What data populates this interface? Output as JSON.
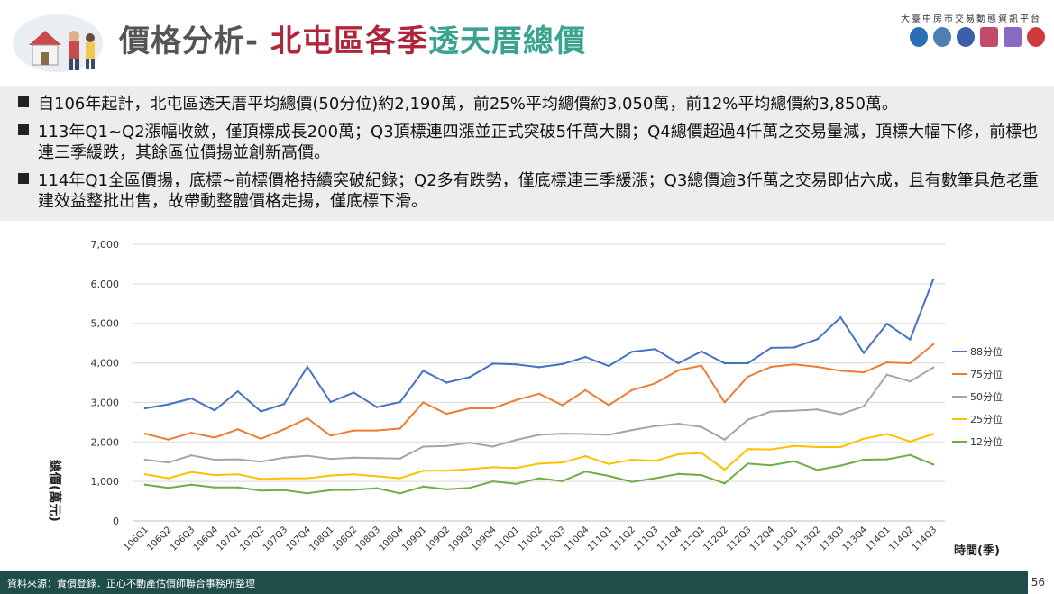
{
  "header": {
    "title_part1": "價格分析-",
    "title_part2": "北屯區各季",
    "title_part3": "透天厝總價",
    "platform": "大臺中房市交易動態資訊平台"
  },
  "bullets": [
    "自106年起計，北屯區透天厝平均總價(50分位)約2,190萬，前25%平均總價約3,050萬，前12%平均總價約3,850萬。",
    "113年Q1~Q2漲幅收斂，僅頂標成長200萬；Q3頂標連四漲並正式突破5仟萬大關；Q4總價超過4仟萬之交易量減，頂標大幅下修，前標也連三季緩跌，其餘區位價揚並創新高價。",
    "114年Q1全區價揚，底標~前標價格持續突破紀錄；Q2多有跌勢，僅底標連三季緩漲；Q3總價逾3仟萬之交易即佔六成，且有數筆具危老重建效益整批出售，故帶動整體價格走揚，僅底標下滑。"
  ],
  "footer": {
    "source": "資料來源：實價登錄．正心不動產估價師聯合事務所整理",
    "page": "56"
  },
  "chart_data": {
    "type": "line",
    "ylabel": "總價(萬元)",
    "xlabel": "時間(季)",
    "ylim": [
      0,
      7000
    ],
    "yticks": [
      "7,000",
      "6,000",
      "5,000",
      "4,000",
      "3,000",
      "2,000",
      "1,000",
      "0"
    ],
    "grid": true,
    "legend_position": "right",
    "categories": [
      "106Q1",
      "106Q2",
      "106Q3",
      "106Q4",
      "107Q1",
      "107Q2",
      "107Q3",
      "107Q4",
      "108Q1",
      "108Q2",
      "108Q3",
      "108Q4",
      "109Q1",
      "109Q2",
      "109Q3",
      "109Q4",
      "110Q1",
      "110Q2",
      "110Q3",
      "110Q4",
      "111Q1",
      "111Q2",
      "111Q3",
      "111Q4",
      "112Q1",
      "112Q2",
      "112Q3",
      "112Q4",
      "113Q1",
      "113Q2",
      "113Q3",
      "113Q4",
      "114Q1",
      "114Q2",
      "114Q3"
    ],
    "series": [
      {
        "name": "88分位",
        "color": "#4472c4",
        "values": [
          2850,
          2950,
          3100,
          2800,
          3280,
          2770,
          2960,
          3900,
          3010,
          3250,
          2880,
          3010,
          3800,
          3500,
          3640,
          3980,
          3960,
          3890,
          3970,
          4150,
          3920,
          4280,
          4350,
          3990,
          4290,
          3990,
          3990,
          4380,
          4390,
          4600,
          5150,
          4250,
          4990,
          4590,
          6110
        ]
      },
      {
        "name": "75分位",
        "color": "#ed7d31",
        "values": [
          2210,
          2060,
          2230,
          2110,
          2320,
          2080,
          2320,
          2600,
          2160,
          2290,
          2290,
          2340,
          3000,
          2710,
          2850,
          2850,
          3060,
          3220,
          2930,
          3310,
          2930,
          3310,
          3480,
          3810,
          3930,
          3000,
          3650,
          3900,
          3960,
          3900,
          3800,
          3760,
          4010,
          3990,
          4470
        ]
      },
      {
        "name": "50分位",
        "color": "#a5a5a5",
        "values": [
          1550,
          1480,
          1660,
          1550,
          1560,
          1500,
          1600,
          1650,
          1570,
          1600,
          1590,
          1580,
          1880,
          1900,
          1980,
          1880,
          2050,
          2180,
          2210,
          2200,
          2180,
          2300,
          2400,
          2460,
          2380,
          2060,
          2560,
          2770,
          2790,
          2820,
          2700,
          2900,
          3700,
          3530,
          3880
        ]
      },
      {
        "name": "25分位",
        "color": "#ffc000",
        "values": [
          1180,
          1080,
          1240,
          1160,
          1180,
          1060,
          1080,
          1080,
          1150,
          1180,
          1130,
          1080,
          1270,
          1270,
          1310,
          1360,
          1340,
          1450,
          1480,
          1640,
          1440,
          1550,
          1520,
          1690,
          1720,
          1300,
          1820,
          1810,
          1900,
          1870,
          1870,
          2080,
          2200,
          2010,
          2200
        ]
      },
      {
        "name": "12分位",
        "color": "#70ad47",
        "values": [
          920,
          840,
          920,
          850,
          850,
          770,
          780,
          700,
          780,
          790,
          830,
          700,
          870,
          800,
          840,
          1000,
          940,
          1080,
          1010,
          1250,
          1140,
          990,
          1080,
          1190,
          1160,
          950,
          1450,
          1410,
          1510,
          1290,
          1400,
          1550,
          1560,
          1670,
          1430
        ]
      }
    ]
  }
}
